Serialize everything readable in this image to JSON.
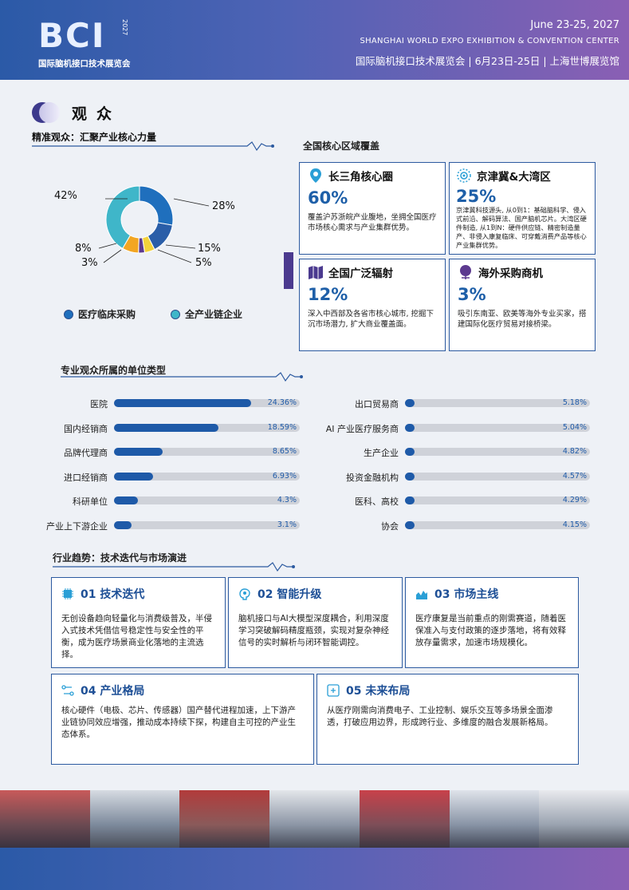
{
  "header": {
    "logo_text": "BCI",
    "logo_cn": "国际脑机接口技术展览会",
    "logo_year": "2027",
    "date": "June 23-25, 2027",
    "venue": "SHANGHAI WORLD EXPO EXHIBITION & CONVENTION CENTER",
    "cn_line": "国际脑机接口技术展览会 | 6月23日-25日 | 上海世博展览馆"
  },
  "section": {
    "title": "观众"
  },
  "audience": {
    "subtitle": "精准观众：汇聚产业核心力量",
    "donut": [
      {
        "label": "42%",
        "value": 42,
        "color": "#3fb6c9"
      },
      {
        "label": "28%",
        "value": 28,
        "color": "#1f6fbd"
      },
      {
        "label": "15%",
        "value": 15,
        "color": "#2a5ea8"
      },
      {
        "label": "5%",
        "value": 5,
        "color": "#f3d23a"
      },
      {
        "label": "3%",
        "value": 3,
        "color": "#5c3a8f"
      },
      {
        "label": "8%",
        "value": 8,
        "color": "#f2a623"
      }
    ],
    "legend": [
      {
        "label": "医疗临床采购",
        "color": "#1f6fbd"
      },
      {
        "label": "全产业链企业",
        "color": "#3fb6c9"
      }
    ]
  },
  "regions": {
    "title": "全国核心区域覆盖",
    "cards": [
      {
        "title": "长三角核心圈",
        "pct": "60%",
        "icon": "location-pin-icon",
        "desc": "覆盖沪苏浙皖产业腹地，坐拥全国医疗市场核心需求与产业集群优势。"
      },
      {
        "title": "京津冀&大湾区",
        "pct": "25%",
        "icon": "target-icon",
        "desc": "京津冀科技源头, 从0到1：基础脑科学、侵入式前沿、解码算法、国产脑机芯片。大湾区硬件制造, 从1到N：硬件供应链、精密制造量产、非侵入康复临床、可穿戴消费产品等核心产业集群优势。"
      },
      {
        "title": "全国广泛辐射",
        "pct": "12%",
        "icon": "map-icon",
        "desc": "深入中西部及各省市核心城市, 挖掘下沉市场潜力, 扩大商业覆盖面。"
      },
      {
        "title": "海外采购商机",
        "pct": "3%",
        "icon": "globe-icon",
        "desc": "吸引东南亚、欧美等海外专业买家，搭建国际化医疗贸易对接桥梁。"
      }
    ]
  },
  "units": {
    "title": "专业观众所属的单位类型",
    "left": [
      {
        "label": "医院",
        "value": 24.36,
        "text": "24.36%"
      },
      {
        "label": "国内经销商",
        "value": 18.59,
        "text": "18.59%"
      },
      {
        "label": "品牌代理商",
        "value": 8.65,
        "text": "8.65%"
      },
      {
        "label": "进口经销商",
        "value": 6.93,
        "text": "6.93%"
      },
      {
        "label": "科研单位",
        "value": 4.3,
        "text": "4.3%"
      },
      {
        "label": "产业上下游企业",
        "value": 3.1,
        "text": "3.1%"
      }
    ],
    "right": [
      {
        "label": "出口贸易商",
        "value": 5.18,
        "text": "5.18%"
      },
      {
        "label": "AI 产业医疗服务商",
        "value": 5.04,
        "text": "5.04%"
      },
      {
        "label": "生产企业",
        "value": 4.82,
        "text": "4.82%"
      },
      {
        "label": "投资金融机构",
        "value": 4.57,
        "text": "4.57%"
      },
      {
        "label": "医科、高校",
        "value": 4.29,
        "text": "4.29%"
      },
      {
        "label": "协会",
        "value": 4.15,
        "text": "4.15%"
      }
    ]
  },
  "trends": {
    "title": "行业趋势：技术迭代与市场演进",
    "cards": [
      {
        "title": "01 技术迭代",
        "icon": "chip-icon",
        "desc": "无创设备趋向轻量化与消费级普及，半侵入式技术凭借信号稳定性与安全性的平衡，成为医疗场景商业化落地的主流选择。"
      },
      {
        "title": "02 智能升级",
        "icon": "brain-icon",
        "desc": "脑机接口与AI大模型深度耦合，利用深度学习突破解码精度瓶颈，实现对复杂神经信号的实时解析与闭环智能调控。"
      },
      {
        "title": "03 市场主线",
        "icon": "chart-icon",
        "desc": "医疗康复是当前重点的刚需赛道，随着医保准入与支付政策的逐步落地，将有效释放存量需求，加速市场规模化。"
      },
      {
        "title": "04 产业格局",
        "icon": "flow-icon",
        "desc": "核心硬件（电极、芯片、传感器）国产替代进程加速，上下游产业链协同效应增强，推动成本持续下探，构建自主可控的产业生态体系。"
      },
      {
        "title": "05 未来布局",
        "icon": "expand-icon",
        "desc": "从医疗刚需向消费电子、工业控制、娱乐交互等多场景全面渗透，打破应用边界，形成跨行业、多维度的融合发展新格局。"
      }
    ]
  }
}
